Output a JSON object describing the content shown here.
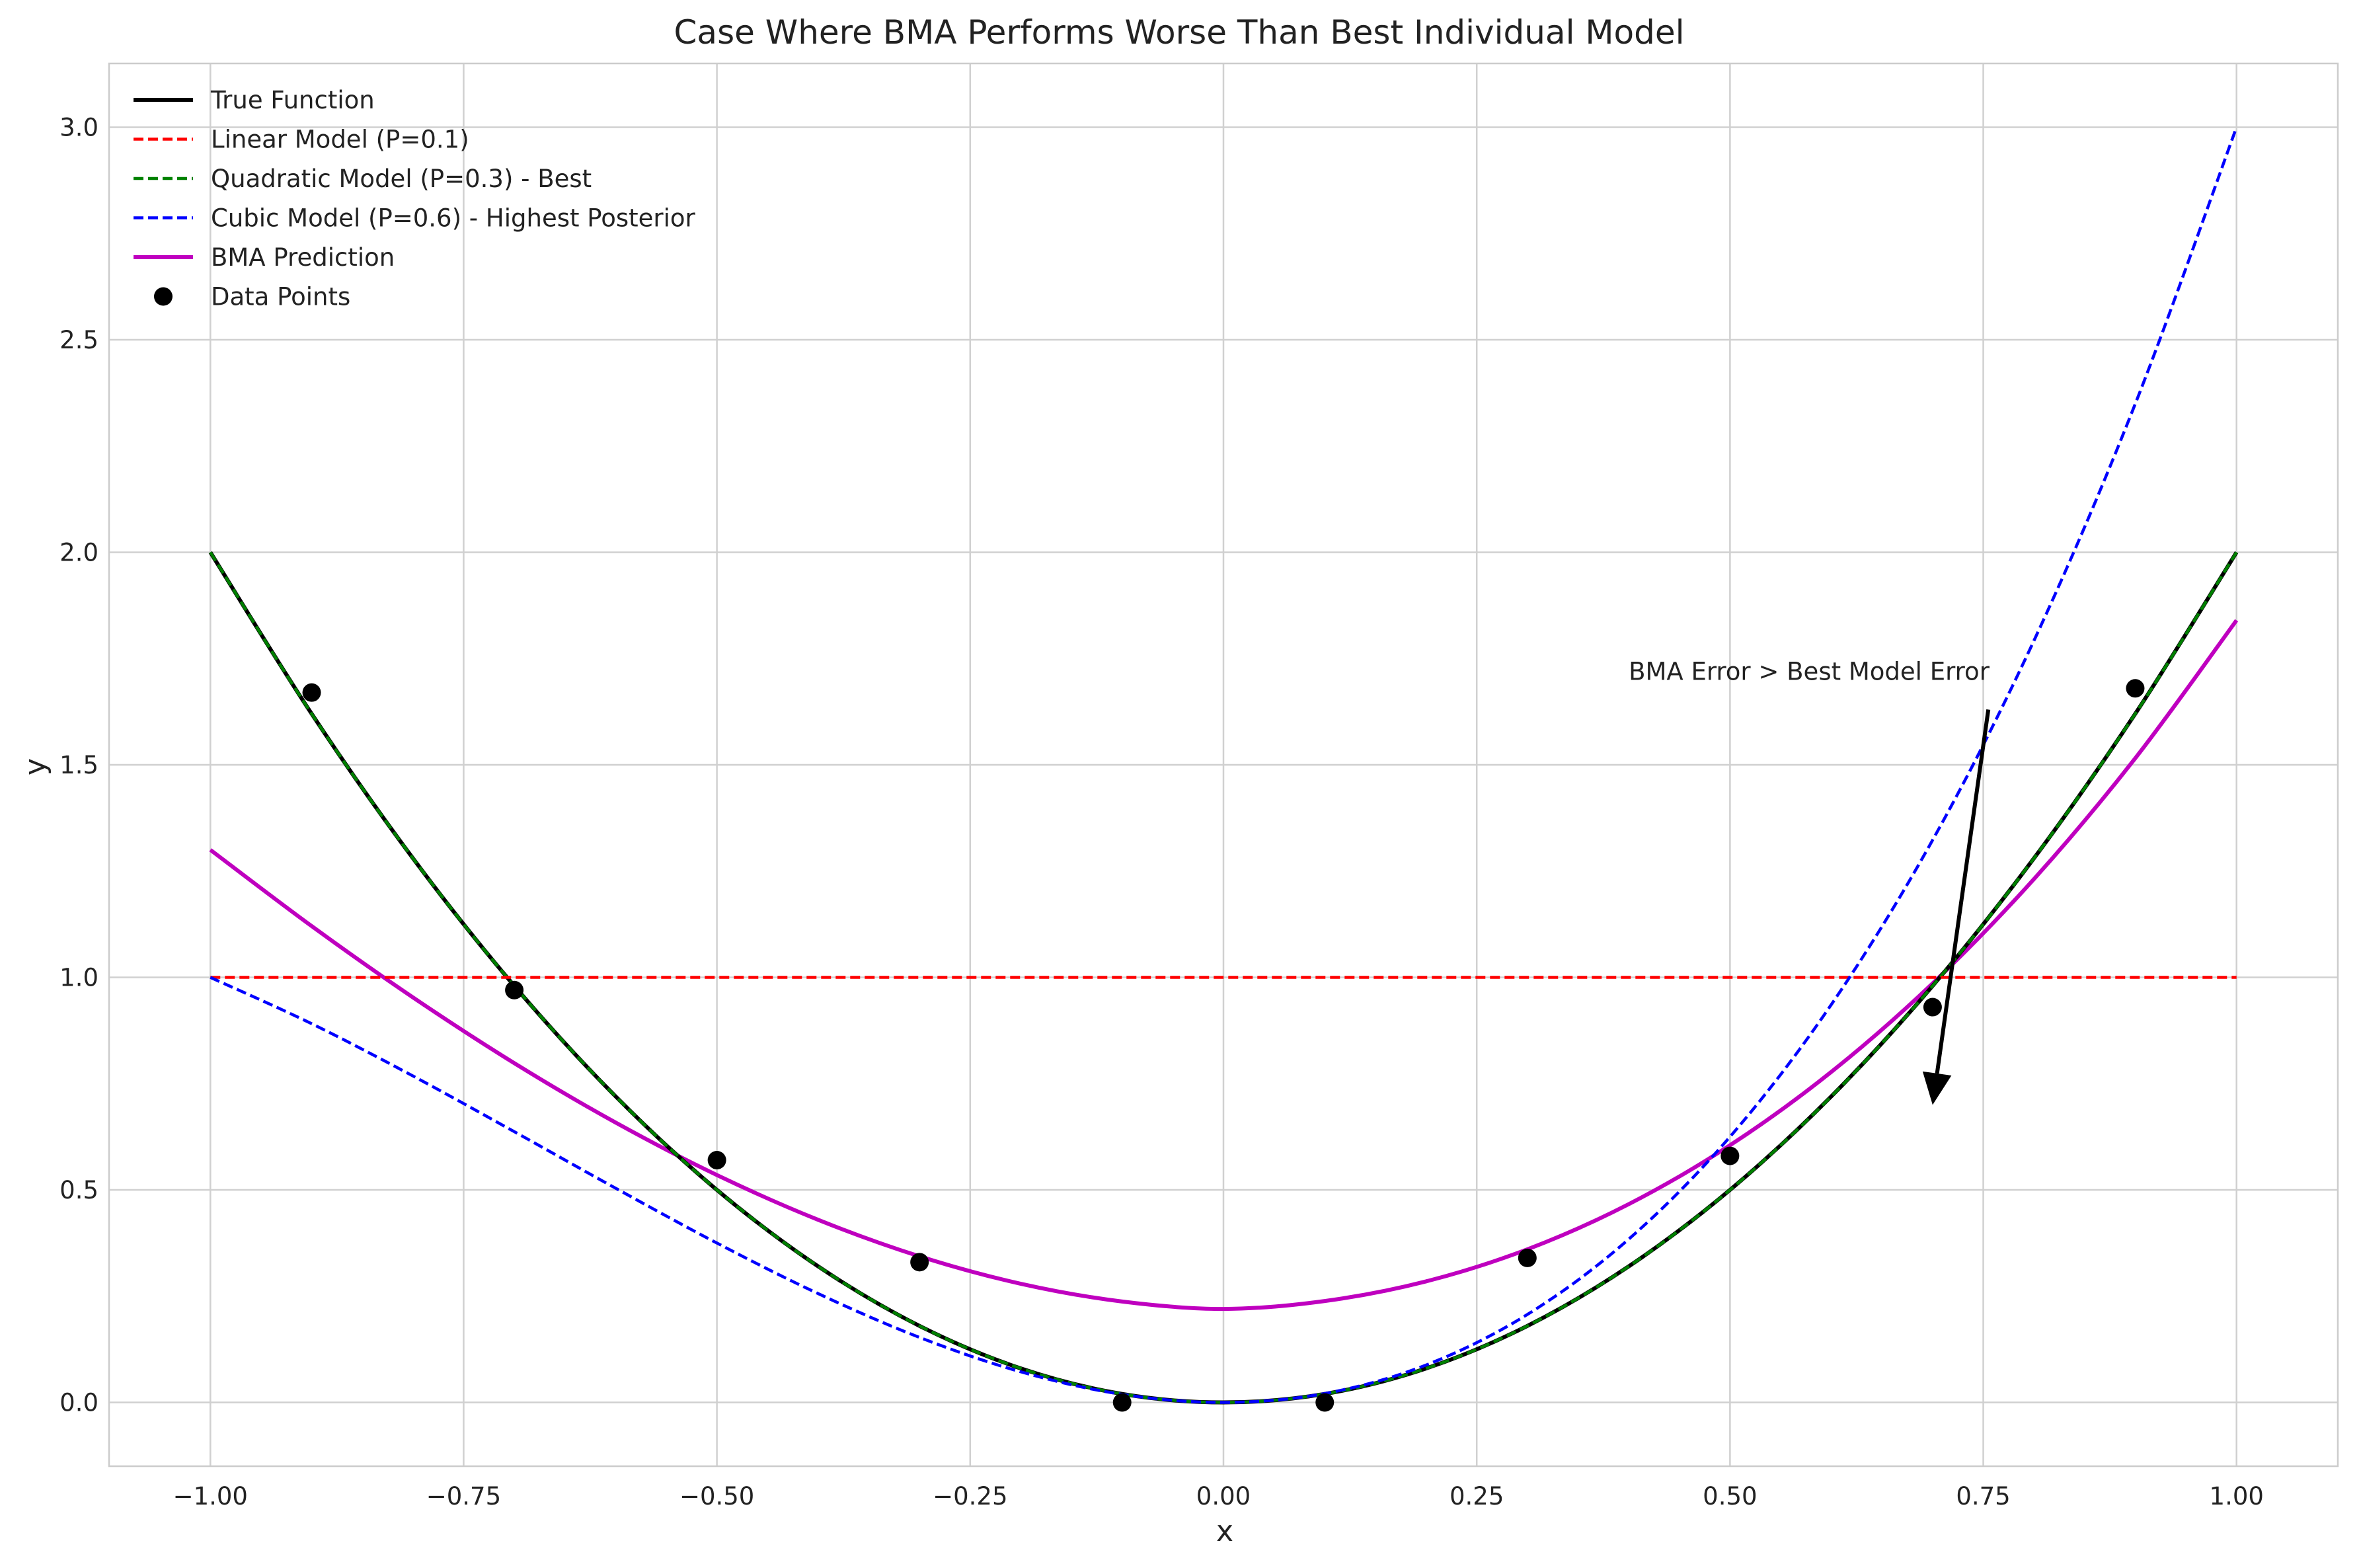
{
  "chart_data": {
    "type": "line",
    "title": "Case Where BMA Performs Worse Than Best Individual Model",
    "xlabel": "x",
    "ylabel": "y",
    "xlim": [
      -1.1,
      1.1
    ],
    "ylim": [
      -0.15,
      3.15
    ],
    "xticks": [
      -1.0,
      -0.75,
      -0.5,
      -0.25,
      0.0,
      0.25,
      0.5,
      0.75,
      1.0
    ],
    "xtick_labels": [
      "−1.00",
      "−0.75",
      "−0.50",
      "−0.25",
      "0.00",
      "0.25",
      "0.50",
      "0.75",
      "1.00"
    ],
    "yticks": [
      0.0,
      0.5,
      1.0,
      1.5,
      2.0,
      2.5,
      3.0
    ],
    "ytick_labels": [
      "0.0",
      "0.5",
      "1.0",
      "1.5",
      "2.0",
      "2.5",
      "3.0"
    ],
    "grid": true,
    "legend_position": "top-left",
    "series": [
      {
        "name": "True Function",
        "style": "solid",
        "color": "#000000",
        "x": [
          -1.0,
          -0.9,
          -0.8,
          -0.7,
          -0.6,
          -0.5,
          -0.4,
          -0.3,
          -0.2,
          -0.1,
          0.0,
          0.1,
          0.2,
          0.3,
          0.4,
          0.5,
          0.6,
          0.7,
          0.8,
          0.9,
          1.0
        ],
        "y": [
          2.0,
          1.62,
          1.28,
          0.98,
          0.72,
          0.5,
          0.32,
          0.18,
          0.08,
          0.02,
          0.0,
          0.02,
          0.08,
          0.18,
          0.32,
          0.5,
          0.72,
          0.98,
          1.28,
          1.62,
          2.0
        ]
      },
      {
        "name": "Linear Model (P=0.1)",
        "style": "dashed",
        "color": "#ff0000",
        "x": [
          -1.0,
          1.0
        ],
        "y": [
          1.0,
          1.0
        ]
      },
      {
        "name": "Quadratic Model (P=0.3) - Best",
        "style": "dashed",
        "color": "#008000",
        "x": [
          -1.0,
          -0.9,
          -0.8,
          -0.7,
          -0.6,
          -0.5,
          -0.4,
          -0.3,
          -0.2,
          -0.1,
          0.0,
          0.1,
          0.2,
          0.3,
          0.4,
          0.5,
          0.6,
          0.7,
          0.8,
          0.9,
          1.0
        ],
        "y": [
          2.0,
          1.62,
          1.28,
          0.98,
          0.72,
          0.5,
          0.32,
          0.18,
          0.08,
          0.02,
          0.0,
          0.02,
          0.08,
          0.18,
          0.32,
          0.5,
          0.72,
          0.98,
          1.28,
          1.62,
          2.0
        ]
      },
      {
        "name": "Cubic Model (P=0.6) - Highest Posterior",
        "style": "dashed",
        "color": "#0000ff",
        "x": [
          -1.0,
          -0.9,
          -0.8,
          -0.7,
          -0.6,
          -0.5,
          -0.4,
          -0.3,
          -0.2,
          -0.1,
          0.0,
          0.1,
          0.2,
          0.3,
          0.4,
          0.5,
          0.6,
          0.7,
          0.8,
          0.9,
          1.0
        ],
        "y": [
          1.0,
          0.891,
          0.768,
          0.637,
          0.504,
          0.375,
          0.256,
          0.153,
          0.072,
          0.019,
          0.0,
          0.021,
          0.088,
          0.207,
          0.384,
          0.625,
          0.936,
          1.323,
          1.792,
          2.349,
          3.0
        ]
      },
      {
        "name": "BMA Prediction",
        "style": "solid",
        "color": "#bf00bf",
        "x": [
          -1.0,
          -0.9,
          -0.8,
          -0.7,
          -0.6,
          -0.5,
          -0.4,
          -0.3,
          -0.2,
          -0.1,
          0.0,
          0.1,
          0.2,
          0.3,
          0.4,
          0.5,
          0.6,
          0.7,
          0.8,
          0.9,
          1.0
        ],
        "y": [
          1.3,
          1.1206,
          0.9528,
          0.7982,
          0.6584,
          0.535,
          0.4296,
          0.3438,
          0.2792,
          0.2374,
          0.22,
          0.2386,
          0.2848,
          0.3602,
          0.4664,
          0.605,
          0.7776,
          0.9858,
          1.2312,
          1.5154,
          1.84
        ]
      },
      {
        "name": "Data Points",
        "style": "markers",
        "color": "#000000",
        "x": [
          -0.9,
          -0.7,
          -0.5,
          -0.3,
          -0.1,
          0.1,
          0.3,
          0.5,
          0.7,
          0.9
        ],
        "y": [
          1.67,
          0.97,
          0.57,
          0.33,
          0.0,
          0.0,
          0.34,
          0.58,
          0.93,
          1.68
        ]
      }
    ],
    "annotations": [
      {
        "text": "BMA Error > Best Model Error",
        "text_x": 0.4,
        "text_y": 1.7,
        "arrow_from": [
          0.755,
          1.63
        ],
        "arrow_to": [
          0.7,
          0.7
        ]
      }
    ]
  }
}
